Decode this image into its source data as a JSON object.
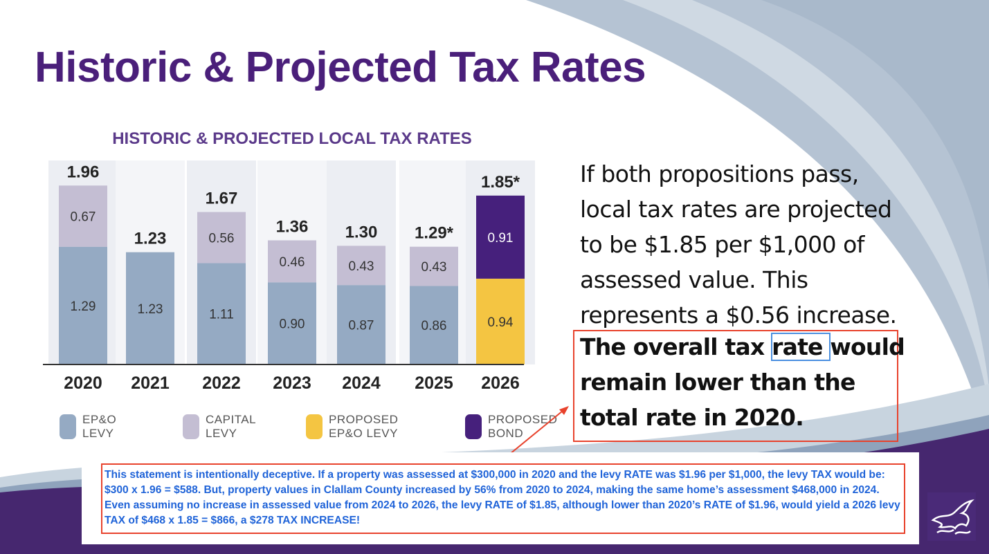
{
  "slide": {
    "title": "Historic & Projected Tax Rates",
    "body_text": "If both propositions pass, local tax rates are projected to be $1.85 per $1,000 of assessed value. This represents a $0.56 increase.",
    "bold_text_before": "The overall tax ",
    "bold_text_highlight": "rate ",
    "bold_text_after": "would remain lower than the total rate in 2020.",
    "annotation": "This statement is intentionally deceptive. If a property was assessed at $300,000 in 2020 and the levy RATE was $1.96 per $1,000, the levy TAX would be: $300 x 1.96 = $588. But, property values in Clallam County increased by 56% from 2020 to 2024, making the same home’s assessment $468,000 in 2024. Even assuming no increase in assessed value from 2024 to 2026, the levy RATE of $1.85, although lower than 2020’s RATE of $1.96, would yield a 2026 levy TAX of $468 x 1.85 = $866, a $278 TAX INCREASE!"
  },
  "colors": {
    "title": "#4a1f7a",
    "epo_levy": "#95aac3",
    "capital_levy": "#c4bed3",
    "proposed_epo_levy": "#f4c542",
    "proposed_bond": "#46207c",
    "annotation_text": "#1f63d8",
    "annotation_border": "#e8422c"
  },
  "chart_data": {
    "type": "bar",
    "stacked": true,
    "title": "HISTORIC & PROJECTED LOCAL TAX RATES",
    "categories": [
      "2020",
      "2021",
      "2022",
      "2023",
      "2024",
      "2025",
      "2026"
    ],
    "series": [
      {
        "name": "EP&O\nLEVY",
        "color_key": "epo_levy",
        "values": [
          1.29,
          1.23,
          1.11,
          0.9,
          0.87,
          0.86,
          null
        ],
        "labels": [
          "1.29",
          "1.23",
          "1.11",
          "0.90",
          "0.87",
          "0.86",
          ""
        ]
      },
      {
        "name": "CAPITAL\nLEVY",
        "color_key": "capital_levy",
        "values": [
          0.67,
          null,
          0.56,
          0.46,
          0.43,
          0.43,
          null
        ],
        "labels": [
          "0.67",
          "",
          "0.56",
          "0.46",
          "0.43",
          "0.43",
          ""
        ]
      },
      {
        "name": "PROPOSED\nEP&O LEVY",
        "color_key": "proposed_epo_levy",
        "values": [
          null,
          null,
          null,
          null,
          null,
          null,
          0.94
        ],
        "labels": [
          "",
          "",
          "",
          "",
          "",
          "",
          "0.94"
        ]
      },
      {
        "name": "PROPOSED\nBOND",
        "color_key": "proposed_bond",
        "values": [
          null,
          null,
          null,
          null,
          null,
          null,
          0.91
        ],
        "labels": [
          "",
          "",
          "",
          "",
          "",
          "",
          "0.91"
        ]
      }
    ],
    "totals": [
      "1.96",
      "1.23",
      "1.67",
      "1.36",
      "1.30",
      "1.29*",
      "1.85*"
    ],
    "ylim": [
      0,
      2.1
    ],
    "xlabel": "",
    "ylabel": "",
    "legend": "bottom"
  }
}
